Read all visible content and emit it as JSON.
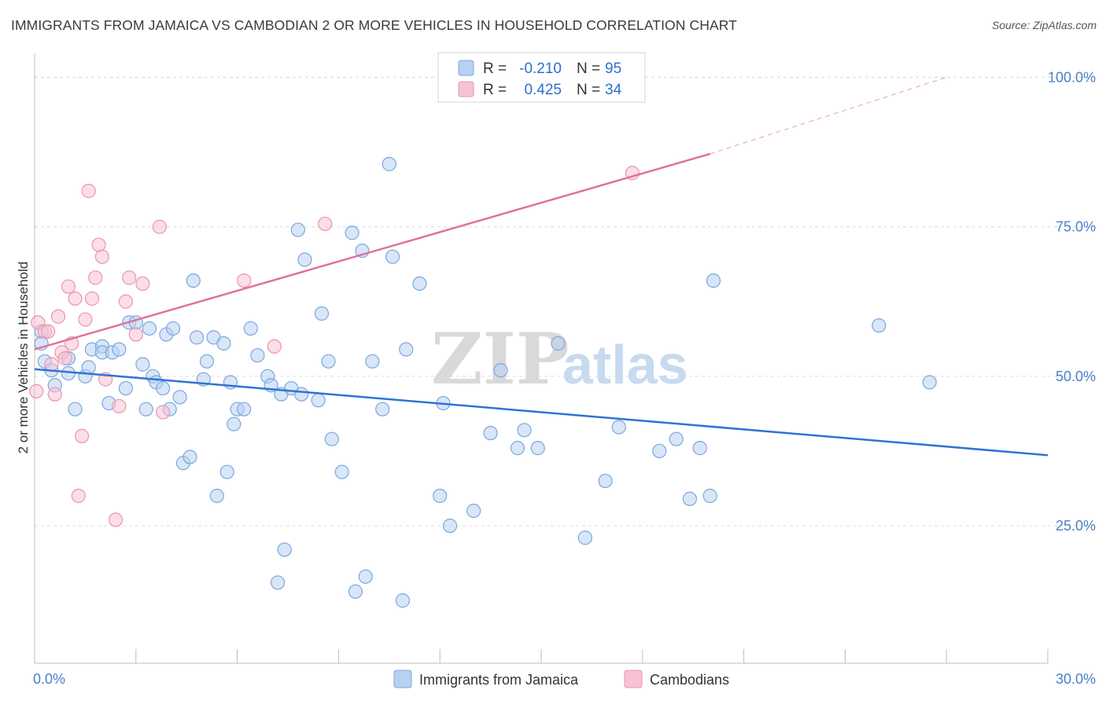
{
  "title": "IMMIGRANTS FROM JAMAICA VS CAMBODIAN 2 OR MORE VEHICLES IN HOUSEHOLD CORRELATION CHART",
  "source": "Source: ZipAtlas.com",
  "watermark": {
    "part1": "ZIP",
    "part2": "atlas"
  },
  "colors": {
    "blue_fill": "#b8d1f1",
    "blue_stroke": "#7ba6e0",
    "blue_line": "#2e74d4",
    "pink_fill": "#f7c3d3",
    "pink_stroke": "#ec93b0",
    "pink_line": "#e0729a",
    "grid": "#dcdcdc",
    "tick_text": "#4a7fc9"
  },
  "legend": {
    "row1": {
      "r_label": "R =",
      "r_value": "-0.210",
      "n_label": "N =",
      "n_value": "95"
    },
    "row2": {
      "r_label": "R =",
      "r_value": "0.425",
      "n_label": "N =",
      "n_value": "34"
    }
  },
  "chart_data": {
    "type": "scatter",
    "title": "IMMIGRANTS FROM JAMAICA VS CAMBODIAN 2 OR MORE VEHICLES IN HOUSEHOLD CORRELATION CHART",
    "xlabel": "",
    "ylabel": "2 or more Vehicles in Household",
    "xlim": [
      0,
      30
    ],
    "ylim": [
      2,
      104
    ],
    "x_tick_labels": [
      "0.0%",
      "30.0%"
    ],
    "y_ticks": [
      25,
      50,
      75,
      100
    ],
    "y_tick_labels": [
      "25.0%",
      "50.0%",
      "75.0%",
      "100.0%"
    ],
    "grid": "horizontal dashed",
    "legend_placement": "top-center",
    "series": [
      {
        "name": "Immigrants from Jamaica",
        "color": "#7ba6e0",
        "trend": {
          "x0": 0,
          "y0": 51.2,
          "x1": 30,
          "y1": 36.8
        },
        "points": [
          [
            0.2,
            57.5
          ],
          [
            0.2,
            55.5
          ],
          [
            0.3,
            52.5
          ],
          [
            0.5,
            51
          ],
          [
            0.6,
            48.5
          ],
          [
            1.0,
            53
          ],
          [
            1.0,
            50.5
          ],
          [
            1.2,
            44.5
          ],
          [
            1.5,
            50
          ],
          [
            1.6,
            51.5
          ],
          [
            1.7,
            54.5
          ],
          [
            2.0,
            55
          ],
          [
            2.0,
            54
          ],
          [
            2.2,
            45.5
          ],
          [
            2.3,
            54
          ],
          [
            2.5,
            54.5
          ],
          [
            2.7,
            48
          ],
          [
            2.8,
            59
          ],
          [
            3.0,
            59
          ],
          [
            3.2,
            52
          ],
          [
            3.3,
            44.5
          ],
          [
            3.4,
            58
          ],
          [
            3.5,
            50
          ],
          [
            3.6,
            49
          ],
          [
            3.8,
            48
          ],
          [
            3.9,
            57
          ],
          [
            4.0,
            44.5
          ],
          [
            4.1,
            58
          ],
          [
            4.3,
            46.5
          ],
          [
            4.4,
            35.5
          ],
          [
            4.6,
            36.5
          ],
          [
            4.7,
            66
          ],
          [
            4.8,
            56.5
          ],
          [
            5.0,
            49.5
          ],
          [
            5.1,
            52.5
          ],
          [
            5.3,
            56.5
          ],
          [
            5.4,
            30
          ],
          [
            5.6,
            55.5
          ],
          [
            5.7,
            34
          ],
          [
            5.8,
            49
          ],
          [
            5.9,
            42
          ],
          [
            6.0,
            44.5
          ],
          [
            6.2,
            44.5
          ],
          [
            6.4,
            58
          ],
          [
            6.6,
            53.5
          ],
          [
            6.9,
            50
          ],
          [
            7.0,
            48.5
          ],
          [
            7.2,
            15.5
          ],
          [
            7.3,
            47
          ],
          [
            7.4,
            21
          ],
          [
            7.6,
            48
          ],
          [
            7.8,
            74.5
          ],
          [
            7.9,
            47
          ],
          [
            8.0,
            69.5
          ],
          [
            8.4,
            46
          ],
          [
            8.5,
            60.5
          ],
          [
            8.7,
            52.5
          ],
          [
            8.8,
            39.5
          ],
          [
            9.1,
            34
          ],
          [
            9.4,
            74
          ],
          [
            9.5,
            14
          ],
          [
            9.7,
            71
          ],
          [
            9.8,
            16.5
          ],
          [
            10.0,
            52.5
          ],
          [
            10.3,
            44.5
          ],
          [
            10.5,
            85.5
          ],
          [
            10.6,
            70
          ],
          [
            10.9,
            12.5
          ],
          [
            11.0,
            54.5
          ],
          [
            11.4,
            65.5
          ],
          [
            12.0,
            30
          ],
          [
            12.1,
            45.5
          ],
          [
            12.3,
            25
          ],
          [
            13.0,
            27.5
          ],
          [
            13.5,
            40.5
          ],
          [
            13.8,
            51
          ],
          [
            14.3,
            38
          ],
          [
            14.5,
            41
          ],
          [
            14.9,
            38
          ],
          [
            15.5,
            55.5
          ],
          [
            16.3,
            23
          ],
          [
            16.9,
            32.5
          ],
          [
            17.3,
            41.5
          ],
          [
            18.5,
            37.5
          ],
          [
            19.0,
            39.5
          ],
          [
            19.4,
            29.5
          ],
          [
            19.7,
            38
          ],
          [
            20.0,
            30
          ],
          [
            20.1,
            66
          ],
          [
            25.0,
            58.5
          ],
          [
            26.5,
            49
          ]
        ]
      },
      {
        "name": "Cambodians",
        "color": "#ec93b0",
        "trend": {
          "x0": 0,
          "y0": 54.5,
          "x1": 20,
          "y1": 87.2
        },
        "trend_dashed_to": {
          "x": 27,
          "y": 100
        },
        "points": [
          [
            0.05,
            47.5
          ],
          [
            0.1,
            59
          ],
          [
            0.3,
            57.5
          ],
          [
            0.4,
            57.5
          ],
          [
            0.5,
            52
          ],
          [
            0.6,
            47
          ],
          [
            0.7,
            60
          ],
          [
            0.8,
            54
          ],
          [
            0.9,
            53
          ],
          [
            1.0,
            65
          ],
          [
            1.1,
            55.5
          ],
          [
            1.2,
            63
          ],
          [
            1.3,
            30
          ],
          [
            1.4,
            40
          ],
          [
            1.5,
            59.5
          ],
          [
            1.6,
            81
          ],
          [
            1.7,
            63
          ],
          [
            1.8,
            66.5
          ],
          [
            1.9,
            72
          ],
          [
            2.0,
            70
          ],
          [
            2.1,
            49.5
          ],
          [
            2.4,
            26
          ],
          [
            2.5,
            45
          ],
          [
            2.7,
            62.5
          ],
          [
            2.8,
            66.5
          ],
          [
            3.0,
            57
          ],
          [
            3.2,
            65.5
          ],
          [
            3.7,
            75
          ],
          [
            3.8,
            44
          ],
          [
            6.2,
            66
          ],
          [
            7.1,
            55
          ],
          [
            8.6,
            75.5
          ],
          [
            17.7,
            84
          ]
        ]
      }
    ]
  }
}
